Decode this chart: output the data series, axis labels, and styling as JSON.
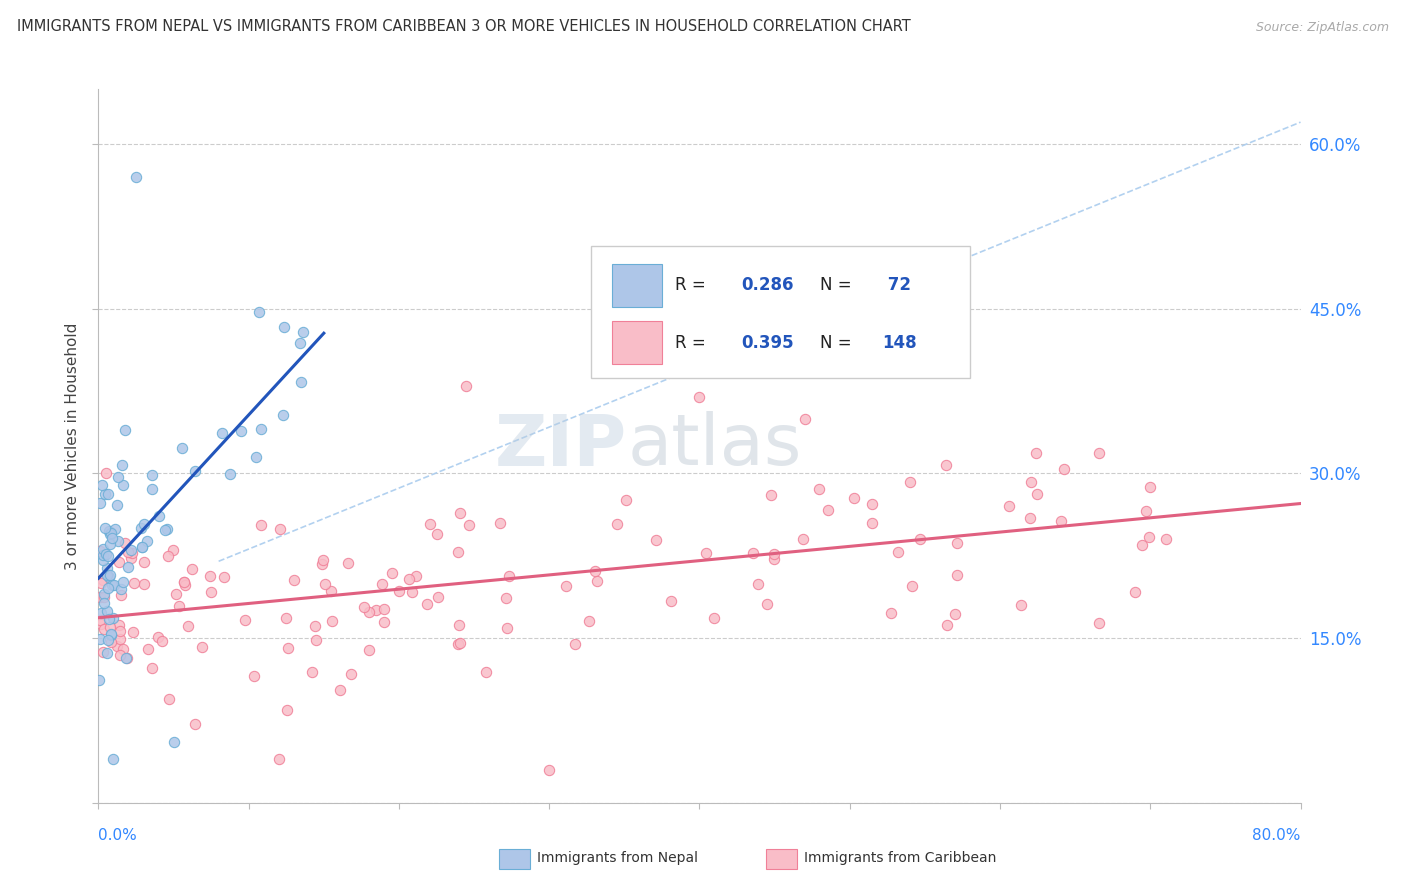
{
  "title": "IMMIGRANTS FROM NEPAL VS IMMIGRANTS FROM CARIBBEAN 3 OR MORE VEHICLES IN HOUSEHOLD CORRELATION CHART",
  "source": "Source: ZipAtlas.com",
  "ylabel": "3 or more Vehicles in Household",
  "nepal_R": 0.286,
  "nepal_N": 72,
  "caribbean_R": 0.395,
  "caribbean_N": 148,
  "nepal_color": "#aec6e8",
  "nepal_edge_color": "#6aaed6",
  "caribbean_color": "#f9bdc8",
  "caribbean_edge_color": "#f08098",
  "nepal_trendline_color": "#2255bb",
  "caribbean_trendline_color": "#e06080",
  "diagonal_line_color": "#aaccee",
  "watermark_color": "#c8ddf0",
  "legend_text_color": "#222222",
  "legend_num_color": "#2255bb",
  "right_axis_color": "#3388ff",
  "xlim": [
    0,
    80
  ],
  "ylim": [
    0,
    65
  ],
  "yticks": [
    0,
    15,
    30,
    45,
    60
  ],
  "yticklabels": [
    "",
    "15.0%",
    "30.0%",
    "45.0%",
    "60.0%"
  ]
}
